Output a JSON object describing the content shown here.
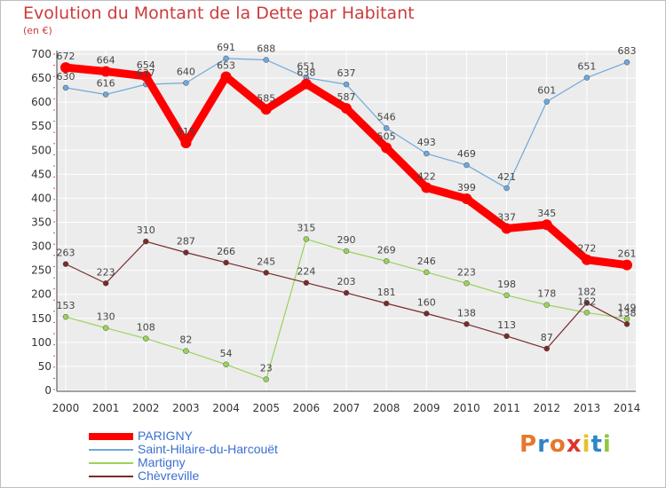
{
  "title": "Evolution du Montant de la Dette par Habitant",
  "subtitle": "(en €)",
  "logo": {
    "text": "Proxiti",
    "colors": [
      "#e8762d",
      "#2e86c9",
      "#e8762d",
      "#e0342c",
      "#e8c12d",
      "#2e86c9",
      "#8dc63f"
    ]
  },
  "chart_data": {
    "type": "line",
    "x": [
      2000,
      2001,
      2002,
      2003,
      2004,
      2005,
      2006,
      2007,
      2008,
      2009,
      2010,
      2011,
      2012,
      2013,
      2014
    ],
    "ylim": [
      0,
      700
    ],
    "yticks": [
      0,
      50,
      100,
      150,
      200,
      250,
      300,
      350,
      400,
      450,
      500,
      550,
      600,
      650,
      700
    ],
    "grid": true,
    "series": [
      {
        "name": "PARIGNY",
        "color": "#ff0000",
        "values": [
          672,
          664,
          654,
          515,
          653,
          585,
          638,
          587,
          505,
          422,
          399,
          337,
          345,
          272,
          261
        ]
      },
      {
        "name": "Saint-Hilaire-du-Harcouët",
        "color": "#6fa8dc",
        "values": [
          630,
          616,
          637,
          640,
          691,
          688,
          651,
          637,
          546,
          493,
          469,
          421,
          601,
          651,
          683
        ]
      },
      {
        "name": "Martigny",
        "color": "#99d45a",
        "values": [
          153,
          130,
          108,
          82,
          54,
          23,
          315,
          290,
          269,
          246,
          223,
          198,
          178,
          162,
          149
        ]
      },
      {
        "name": "Chèvreville",
        "color": "#7a2a2a",
        "values": [
          263,
          223,
          310,
          287,
          266,
          245,
          224,
          203,
          181,
          160,
          138,
          113,
          87,
          182,
          138
        ]
      }
    ]
  }
}
